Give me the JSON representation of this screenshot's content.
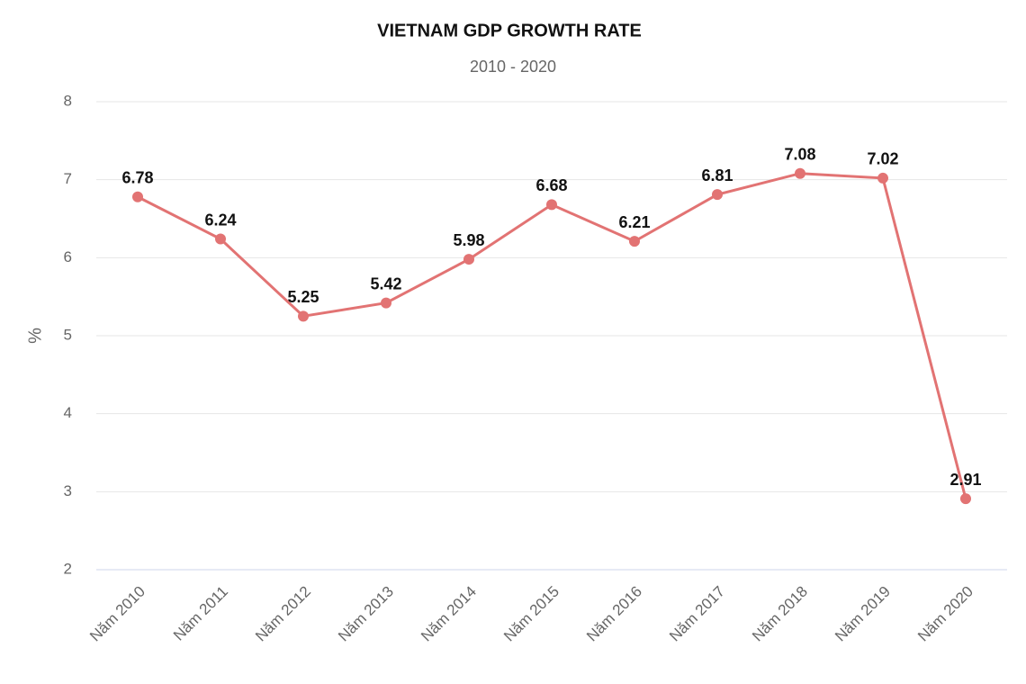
{
  "chart_data": {
    "type": "line",
    "title": "VIETNAM GDP GROWTH RATE",
    "subtitle": "2010 - 2020",
    "y_label": "%",
    "categories": [
      "Năm 2010",
      "Năm 2011",
      "Năm 2012",
      "Năm 2013",
      "Năm 2014",
      "Năm 2015",
      "Năm 2016",
      "Năm 2017",
      "Năm 2018",
      "Năm 2019",
      "Năm 2020"
    ],
    "values": [
      6.78,
      6.24,
      5.25,
      5.42,
      5.98,
      6.68,
      6.21,
      6.81,
      7.08,
      7.02,
      2.91
    ],
    "color": "#e27373",
    "ylim": [
      2,
      8
    ],
    "yticks": [
      2,
      3,
      4,
      5,
      6,
      7,
      8
    ],
    "grid": true
  }
}
